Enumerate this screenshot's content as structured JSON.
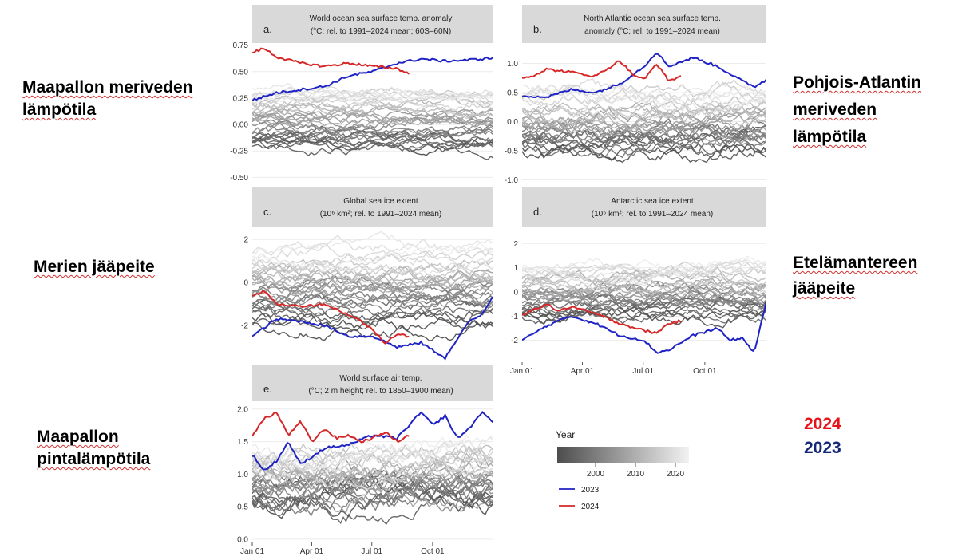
{
  "side_labels": {
    "a": [
      "Maapallon meriveden",
      "lämpötila"
    ],
    "b": [
      "Pohjois-Atlantin",
      "meriveden",
      "lämpötila"
    ],
    "c": [
      "Merien jääpeite"
    ],
    "d": [
      "Etelämantereen",
      "jääpeite"
    ],
    "e": [
      "Maapallon",
      "pintalämpötila"
    ]
  },
  "year_labels": {
    "y2024": "2024",
    "y2023": "2023"
  },
  "colors": {
    "y2023": "#1f23c4",
    "y2024": "#d62728",
    "panel_header": "#d9d9d9",
    "y2024_label": "#e8121a",
    "y2023_label": "#14287a"
  },
  "legend": {
    "title": "Year",
    "ticks": [
      "2000",
      "2010",
      "2020"
    ],
    "items": [
      {
        "label": "2023",
        "color": "#1f23c4"
      },
      {
        "label": "2024",
        "color": "#d62728"
      }
    ]
  },
  "x_ticks": [
    "Jan 01",
    "Apr 01",
    "Jul 01",
    "Oct 01"
  ],
  "chart_data": [
    {
      "id": "a",
      "type": "line",
      "title": "World ocean sea surface temp. anomaly",
      "subtitle": "(°C; rel. to 1991–2024 mean; 60S–60N)",
      "ylim": [
        -0.55,
        0.77
      ],
      "yticks": [
        0.75,
        0.5,
        0.25,
        0.0,
        -0.25,
        -0.5
      ],
      "ytick_labels": [
        "0.75",
        "0.50",
        "0.25",
        "0.00",
        "-0.25",
        "-0.50"
      ],
      "bg_center": [
        -0.2,
        0.3
      ],
      "bg_noise": 0.04,
      "series": [
        {
          "name": "2023",
          "x": [
            0,
            0.1,
            0.2,
            0.3,
            0.4,
            0.5,
            0.6,
            0.7,
            0.8,
            0.9,
            1.0
          ],
          "y": [
            0.23,
            0.3,
            0.33,
            0.36,
            0.46,
            0.5,
            0.58,
            0.62,
            0.6,
            0.61,
            0.63
          ]
        },
        {
          "name": "2024",
          "x": [
            0,
            0.05,
            0.1,
            0.2,
            0.3,
            0.4,
            0.5,
            0.6,
            0.65
          ],
          "y": [
            0.68,
            0.72,
            0.64,
            0.58,
            0.55,
            0.58,
            0.55,
            0.53,
            0.48
          ]
        }
      ]
    },
    {
      "id": "b",
      "type": "line",
      "title": "North Atlantic ocean sea surface temp.",
      "subtitle": "anomaly (°C; rel. to 1991–2024 mean)",
      "ylim": [
        -1.05,
        1.35
      ],
      "yticks": [
        1.0,
        0.5,
        0.0,
        -0.5,
        -1.0
      ],
      "ytick_labels": [
        "1.0",
        "0.5",
        "0.0",
        "-0.5",
        "-1.0"
      ],
      "bg_center": [
        -0.5,
        0.5
      ],
      "bg_noise": 0.1,
      "series": [
        {
          "name": "2023",
          "x": [
            0,
            0.1,
            0.2,
            0.3,
            0.4,
            0.5,
            0.55,
            0.6,
            0.7,
            0.8,
            0.9,
            0.95,
            1.0
          ],
          "y": [
            0.45,
            0.42,
            0.55,
            0.5,
            0.65,
            0.95,
            1.2,
            0.95,
            1.1,
            0.95,
            0.7,
            0.6,
            0.72
          ]
        },
        {
          "name": "2024",
          "x": [
            0,
            0.05,
            0.1,
            0.2,
            0.3,
            0.4,
            0.45,
            0.5,
            0.55,
            0.6,
            0.65
          ],
          "y": [
            0.75,
            0.8,
            0.9,
            0.85,
            0.78,
            1.05,
            0.82,
            0.72,
            1.0,
            0.7,
            0.78
          ]
        }
      ]
    },
    {
      "id": "c",
      "type": "line",
      "title": "Global sea ice extent",
      "subtitle": "(10⁶ km²; rel. to 1991–2024 mean)",
      "ylim": [
        -3.7,
        2.6
      ],
      "yticks": [
        2,
        0,
        -2
      ],
      "ytick_labels": [
        "2",
        "0",
        "-2"
      ],
      "bg_center": [
        -1.8,
        1.5
      ],
      "bg_noise": 0.25,
      "series": [
        {
          "name": "2023",
          "x": [
            0,
            0.1,
            0.2,
            0.3,
            0.4,
            0.5,
            0.6,
            0.7,
            0.8,
            0.9,
            0.95,
            1.0
          ],
          "y": [
            -2.5,
            -1.7,
            -1.8,
            -2.0,
            -2.5,
            -2.5,
            -3.0,
            -2.8,
            -3.5,
            -1.8,
            -1.5,
            -0.6
          ]
        },
        {
          "name": "2024",
          "x": [
            0,
            0.05,
            0.1,
            0.2,
            0.3,
            0.4,
            0.45,
            0.5,
            0.55,
            0.6,
            0.65
          ],
          "y": [
            -0.6,
            -0.4,
            -1.0,
            -1.1,
            -1.0,
            -1.5,
            -1.8,
            -2.2,
            -2.8,
            -2.4,
            -2.5
          ]
        }
      ]
    },
    {
      "id": "d",
      "type": "line",
      "title": "Antarctic sea ice extent",
      "subtitle": "(10⁶ km²; rel. to 1991–2024 mean)",
      "ylim": [
        -2.9,
        2.7
      ],
      "yticks": [
        2,
        1,
        0,
        -1,
        -2
      ],
      "ytick_labels": [
        "2",
        "1",
        "0",
        "-1",
        "-2"
      ],
      "bg_center": [
        -1.0,
        1.0
      ],
      "bg_noise": 0.2,
      "show_x_axis": true,
      "series": [
        {
          "name": "2023",
          "x": [
            0,
            0.1,
            0.2,
            0.3,
            0.4,
            0.5,
            0.55,
            0.6,
            0.65,
            0.7,
            0.8,
            0.85,
            0.9,
            0.95,
            1.0
          ],
          "y": [
            -2.0,
            -1.4,
            -1.0,
            -1.3,
            -1.8,
            -2.0,
            -2.5,
            -2.4,
            -2.1,
            -1.8,
            -1.5,
            -2.0,
            -1.9,
            -2.5,
            -0.4
          ]
        },
        {
          "name": "2024",
          "x": [
            0,
            0.05,
            0.1,
            0.15,
            0.2,
            0.3,
            0.4,
            0.5,
            0.55,
            0.6,
            0.65
          ],
          "y": [
            -1.0,
            -0.7,
            -0.5,
            -0.8,
            -0.6,
            -0.9,
            -1.3,
            -1.6,
            -1.7,
            -1.3,
            -1.2
          ]
        }
      ]
    },
    {
      "id": "e",
      "type": "line",
      "title": "World surface air temp.",
      "subtitle": "(°C; 2 m height; rel. to 1850–1900 mean)",
      "ylim": [
        -0.05,
        2.12
      ],
      "yticks": [
        2.0,
        1.5,
        1.0,
        0.5,
        0.0
      ],
      "ytick_labels": [
        "2.0",
        "1.5",
        "1.0",
        "0.5",
        "0.0"
      ],
      "bg_center": [
        0.55,
        1.35
      ],
      "bg_noise": 0.12,
      "show_x_axis": true,
      "series": [
        {
          "name": "2023",
          "x": [
            0,
            0.05,
            0.1,
            0.15,
            0.2,
            0.3,
            0.4,
            0.5,
            0.6,
            0.7,
            0.75,
            0.8,
            0.85,
            0.9,
            0.95,
            1.0
          ],
          "y": [
            1.3,
            1.05,
            1.2,
            1.5,
            1.15,
            1.4,
            1.45,
            1.6,
            1.55,
            1.95,
            1.75,
            1.9,
            1.55,
            1.7,
            1.95,
            1.8
          ]
        },
        {
          "name": "2024",
          "x": [
            0,
            0.05,
            0.1,
            0.15,
            0.2,
            0.25,
            0.3,
            0.35,
            0.4,
            0.45,
            0.5,
            0.55,
            0.6,
            0.65
          ],
          "y": [
            1.6,
            1.85,
            1.95,
            1.6,
            1.8,
            1.5,
            1.7,
            1.55,
            1.6,
            1.5,
            1.55,
            1.65,
            1.5,
            1.6
          ]
        }
      ]
    }
  ]
}
